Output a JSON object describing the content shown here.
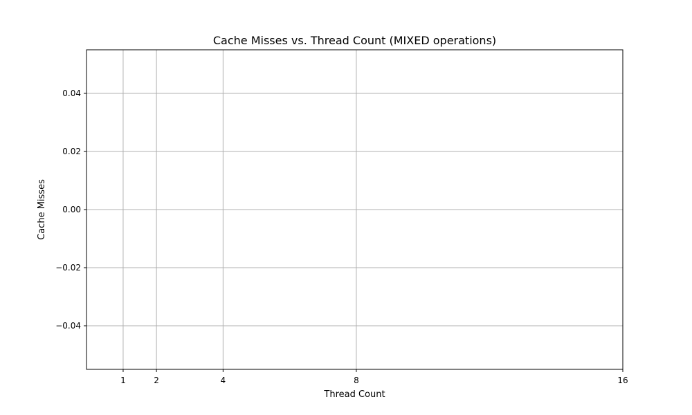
{
  "chart_data": {
    "type": "line",
    "title": "Cache Misses vs. Thread Count (MIXED operations)",
    "xlabel": "Thread Count",
    "ylabel": "Cache Misses",
    "x_ticks": [
      1,
      2,
      4,
      8,
      16
    ],
    "x_tick_labels": [
      "1",
      "2",
      "4",
      "8",
      "16"
    ],
    "xlim": [
      -0.1,
      16
    ],
    "y_ticks": [
      -0.04,
      -0.02,
      0.0,
      0.02,
      0.04
    ],
    "y_tick_labels": [
      "−0.04",
      "−0.02",
      "0.00",
      "0.02",
      "0.04"
    ],
    "ylim": [
      -0.055,
      0.055
    ],
    "grid": true,
    "series": []
  },
  "colors": {
    "grid": "#b0b0b0",
    "axis": "#000000",
    "background": "#ffffff"
  }
}
